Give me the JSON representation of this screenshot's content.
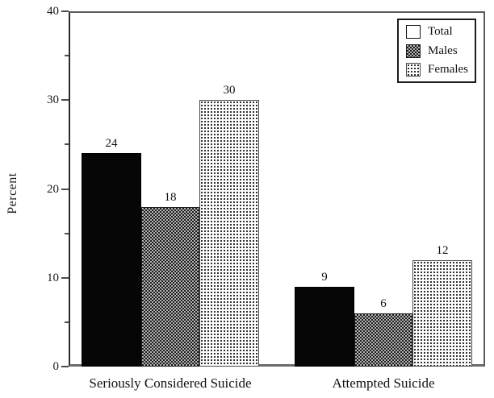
{
  "figure": {
    "background": "#ffffff",
    "frame_color": "#5c5c5c",
    "text_color": "#1a1a1a"
  },
  "chart_data": {
    "type": "bar",
    "title": "",
    "xlabel": "",
    "ylabel": "Percent",
    "ylim": [
      0,
      40
    ],
    "yticks_major": [
      0,
      10,
      20,
      30,
      40
    ],
    "yticks_minor": [
      5,
      15,
      25,
      35
    ],
    "grid": false,
    "categories": [
      "Seriously Considered Suicide",
      "Attempted Suicide"
    ],
    "series": [
      {
        "name": "Total",
        "values": [
          24,
          9
        ],
        "pattern": "solid-black",
        "legend_swatch": "white-empty"
      },
      {
        "name": "Males",
        "values": [
          18,
          6
        ],
        "pattern": "dark-checker",
        "legend_swatch": "dark-checker"
      },
      {
        "name": "Females",
        "values": [
          30,
          12
        ],
        "pattern": "light-dots",
        "legend_swatch": "light-dots"
      }
    ],
    "bar_value_labels": [
      [
        24,
        18,
        30
      ],
      [
        9,
        6,
        12
      ]
    ],
    "legend": {
      "position": "top-right",
      "entries": [
        "Total",
        "Males",
        "Females"
      ]
    }
  }
}
